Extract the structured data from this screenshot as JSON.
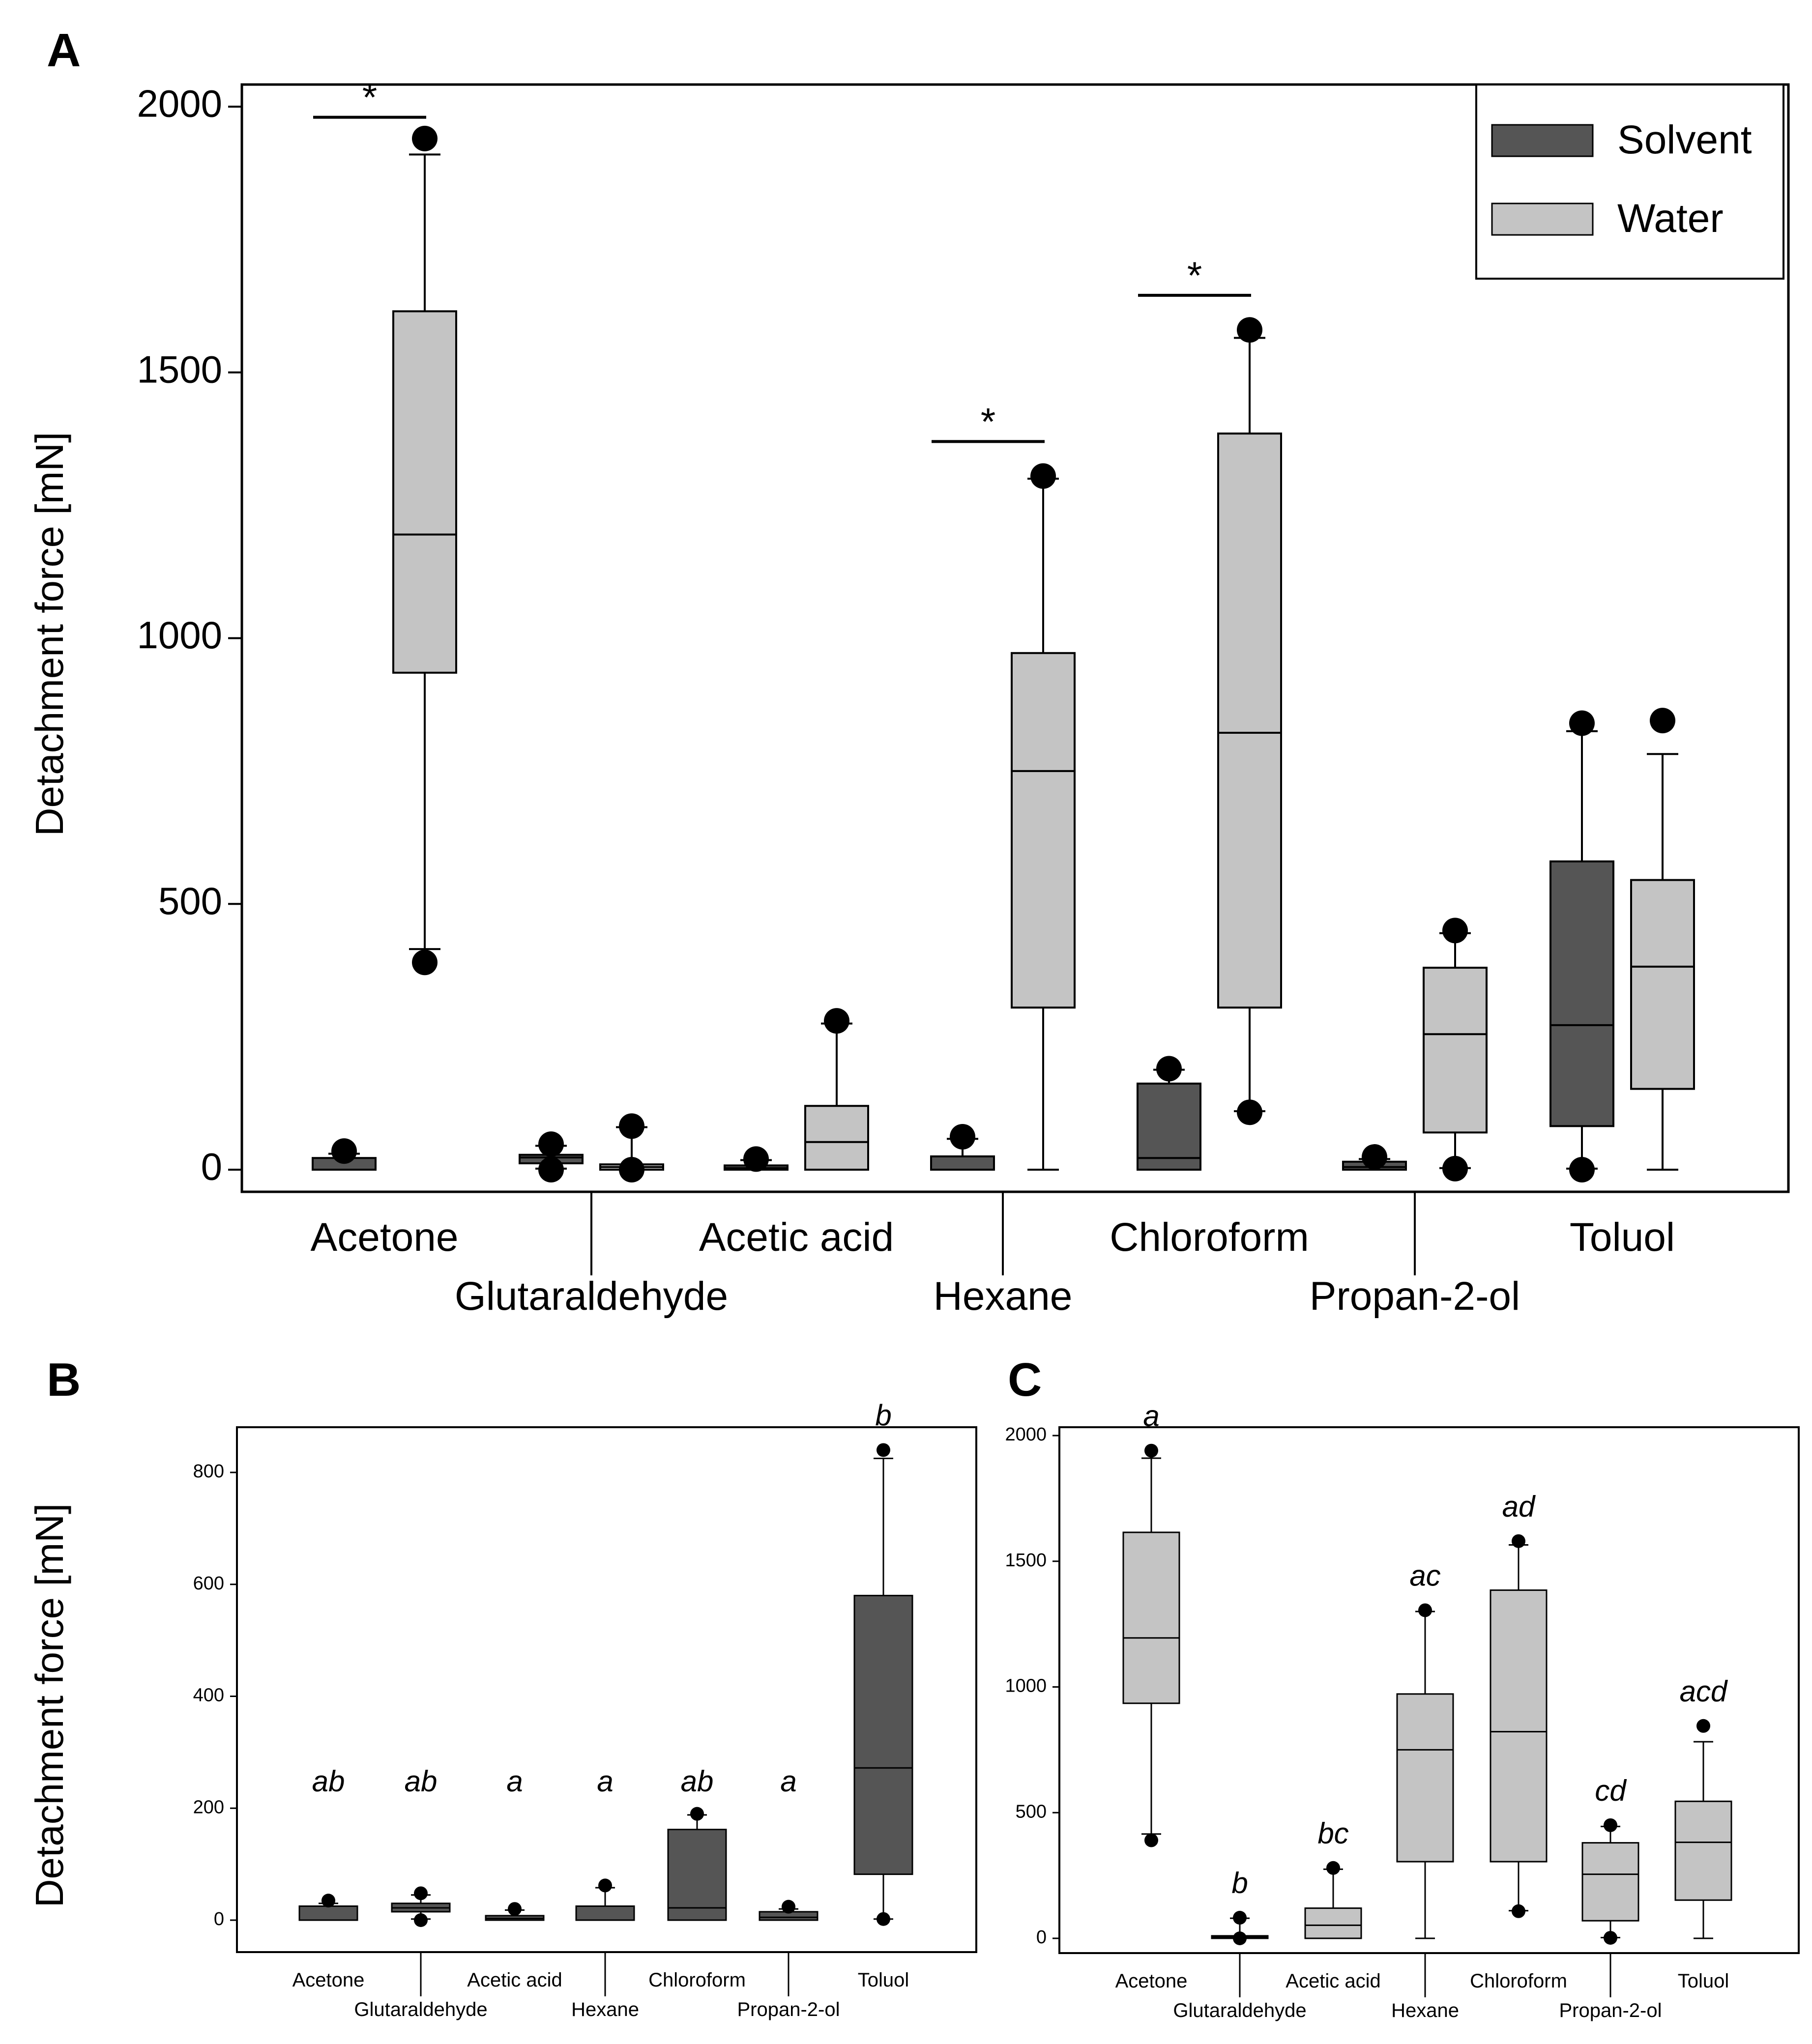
{
  "chart_data": [
    {
      "panel": "A",
      "type": "box",
      "title": "",
      "xlabel": "",
      "ylabel": "Detachment force [mN]",
      "ylim": [
        -60,
        2040
      ],
      "yticks": [
        0,
        500,
        1000,
        1500,
        2000
      ],
      "categories": [
        "Acetone",
        "Glutaraldehyde",
        "Acetic acid",
        "Hexane",
        "Chloroform",
        "Propan-2-ol",
        "Toluol"
      ],
      "legend": {
        "position": "top-right",
        "entries": [
          {
            "name": "Solvent",
            "color": "#555555"
          },
          {
            "name": "Water",
            "color": "#c4c4c4"
          }
        ]
      },
      "series": [
        {
          "name": "Solvent",
          "color": "#555555",
          "boxes": [
            {
              "category": "Acetone",
              "min": 0,
              "q1": 0,
              "median": 0,
              "q3": 22,
              "max": 30,
              "outliers": [
                35
              ]
            },
            {
              "category": "Glutaraldehyde",
              "min": 2,
              "q1": 12,
              "median": 23,
              "q3": 28,
              "max": 45,
              "outliers": [
                0,
                48
              ]
            },
            {
              "category": "Acetic acid",
              "min": 0,
              "q1": 0,
              "median": 3,
              "q3": 8,
              "max": 18,
              "outliers": [
                20
              ]
            },
            {
              "category": "Hexane",
              "min": 0,
              "q1": 0,
              "median": 0,
              "q3": 25,
              "max": 58,
              "outliers": [
                62
              ]
            },
            {
              "category": "Chloroform",
              "min": 0,
              "q1": 0,
              "median": 22,
              "q3": 162,
              "max": 188,
              "outliers": [
                190
              ]
            },
            {
              "category": "Propan-2-ol",
              "min": 0,
              "q1": 0,
              "median": 5,
              "q3": 15,
              "max": 20,
              "outliers": [
                24
              ]
            },
            {
              "category": "Toluol",
              "min": 2,
              "q1": 82,
              "median": 272,
              "q3": 580,
              "max": 825,
              "outliers": [
                0,
                840
              ]
            }
          ]
        },
        {
          "name": "Water",
          "color": "#c4c4c4",
          "boxes": [
            {
              "category": "Acetone",
              "min": 415,
              "q1": 935,
              "median": 1195,
              "q3": 1615,
              "max": 1910,
              "outliers": [
                390,
                1940
              ]
            },
            {
              "category": "Glutaraldehyde",
              "min": 0,
              "q1": 0,
              "median": 5,
              "q3": 10,
              "max": 80,
              "outliers": [
                0,
                82
              ]
            },
            {
              "category": "Acetic acid",
              "min": 0,
              "q1": 0,
              "median": 52,
              "q3": 120,
              "max": 275,
              "outliers": [
                280
              ]
            },
            {
              "category": "Hexane",
              "min": 0,
              "q1": 305,
              "median": 750,
              "q3": 972,
              "max": 1300,
              "outliers": [
                1305
              ]
            },
            {
              "category": "Chloroform",
              "min": 110,
              "q1": 305,
              "median": 822,
              "q3": 1385,
              "max": 1565,
              "outliers": [
                108,
                1580
              ]
            },
            {
              "category": "Propan-2-ol",
              "min": 3,
              "q1": 70,
              "median": 255,
              "q3": 380,
              "max": 445,
              "outliers": [
                2,
                450
              ]
            },
            {
              "category": "Toluol",
              "min": 0,
              "q1": 152,
              "median": 382,
              "q3": 545,
              "max": 782,
              "outliers": [
                845
              ]
            }
          ]
        }
      ],
      "significance": [
        {
          "category": "Acetone",
          "label": "*",
          "level": 1980
        },
        {
          "category": "Hexane",
          "label": "*",
          "level": 1370
        },
        {
          "category": "Chloroform",
          "label": "*",
          "level": 1645
        }
      ]
    },
    {
      "panel": "B",
      "type": "box",
      "title": "",
      "xlabel": "",
      "ylabel": "Detachment force [mN]",
      "ylim": [
        -50,
        900
      ],
      "yticks": [
        0,
        200,
        400,
        600,
        800
      ],
      "categories": [
        "Acetone",
        "Glutaraldehyde",
        "Acetic acid",
        "Hexane",
        "Chloroform",
        "Propan-2-ol",
        "Toluol"
      ],
      "series": [
        {
          "name": "Solvent",
          "color": "#555555",
          "boxes": [
            {
              "category": "Acetone",
              "min": 0,
              "q1": 0,
              "median": 0,
              "q3": 25,
              "max": 30,
              "outliers": [
                35
              ],
              "letter": "ab"
            },
            {
              "category": "Glutaraldehyde",
              "min": 2,
              "q1": 15,
              "median": 22,
              "q3": 30,
              "max": 45,
              "outliers": [
                0,
                48
              ],
              "letter": "ab"
            },
            {
              "category": "Acetic acid",
              "min": 0,
              "q1": 0,
              "median": 3,
              "q3": 8,
              "max": 18,
              "outliers": [
                20
              ],
              "letter": "a"
            },
            {
              "category": "Hexane",
              "min": 0,
              "q1": 0,
              "median": 0,
              "q3": 25,
              "max": 58,
              "outliers": [
                62
              ],
              "letter": "a"
            },
            {
              "category": "Chloroform",
              "min": 0,
              "q1": 0,
              "median": 22,
              "q3": 162,
              "max": 188,
              "outliers": [
                190
              ],
              "letter": "ab"
            },
            {
              "category": "Propan-2-ol",
              "min": 0,
              "q1": 0,
              "median": 5,
              "q3": 15,
              "max": 20,
              "outliers": [
                24
              ],
              "letter": "a"
            },
            {
              "category": "Toluol",
              "min": 2,
              "q1": 82,
              "median": 272,
              "q3": 580,
              "max": 825,
              "outliers": [
                2,
                840
              ],
              "letter": "b"
            }
          ]
        }
      ]
    },
    {
      "panel": "C",
      "type": "box",
      "title": "",
      "xlabel": "",
      "ylabel": "",
      "ylim": [
        -50,
        2050
      ],
      "yticks": [
        0,
        500,
        1000,
        1500,
        2000
      ],
      "categories": [
        "Acetone",
        "Glutaraldehyde",
        "Acetic acid",
        "Hexane",
        "Chloroform",
        "Propan-2-ol",
        "Toluol"
      ],
      "series": [
        {
          "name": "Water",
          "color": "#c4c4c4",
          "boxes": [
            {
              "category": "Acetone",
              "min": 415,
              "q1": 935,
              "median": 1195,
              "q3": 1615,
              "max": 1910,
              "outliers": [
                390,
                1940
              ],
              "letter": "a"
            },
            {
              "category": "Glutaraldehyde",
              "min": 0,
              "q1": 0,
              "median": 5,
              "q3": 10,
              "max": 80,
              "outliers": [
                0,
                82
              ],
              "letter": "b"
            },
            {
              "category": "Acetic acid",
              "min": 0,
              "q1": 0,
              "median": 52,
              "q3": 120,
              "max": 275,
              "outliers": [
                280
              ],
              "letter": "bc"
            },
            {
              "category": "Hexane",
              "min": 0,
              "q1": 305,
              "median": 750,
              "q3": 972,
              "max": 1300,
              "outliers": [
                1305
              ],
              "letter": "ac"
            },
            {
              "category": "Chloroform",
              "min": 110,
              "q1": 305,
              "median": 822,
              "q3": 1385,
              "max": 1565,
              "outliers": [
                108,
                1580
              ],
              "letter": "ad"
            },
            {
              "category": "Propan-2-ol",
              "min": 3,
              "q1": 70,
              "median": 255,
              "q3": 380,
              "max": 445,
              "outliers": [
                2,
                450
              ],
              "letter": "cd"
            },
            {
              "category": "Toluol",
              "min": 0,
              "q1": 152,
              "median": 382,
              "q3": 545,
              "max": 782,
              "outliers": [
                845
              ],
              "letter": "acd"
            }
          ]
        }
      ]
    }
  ]
}
